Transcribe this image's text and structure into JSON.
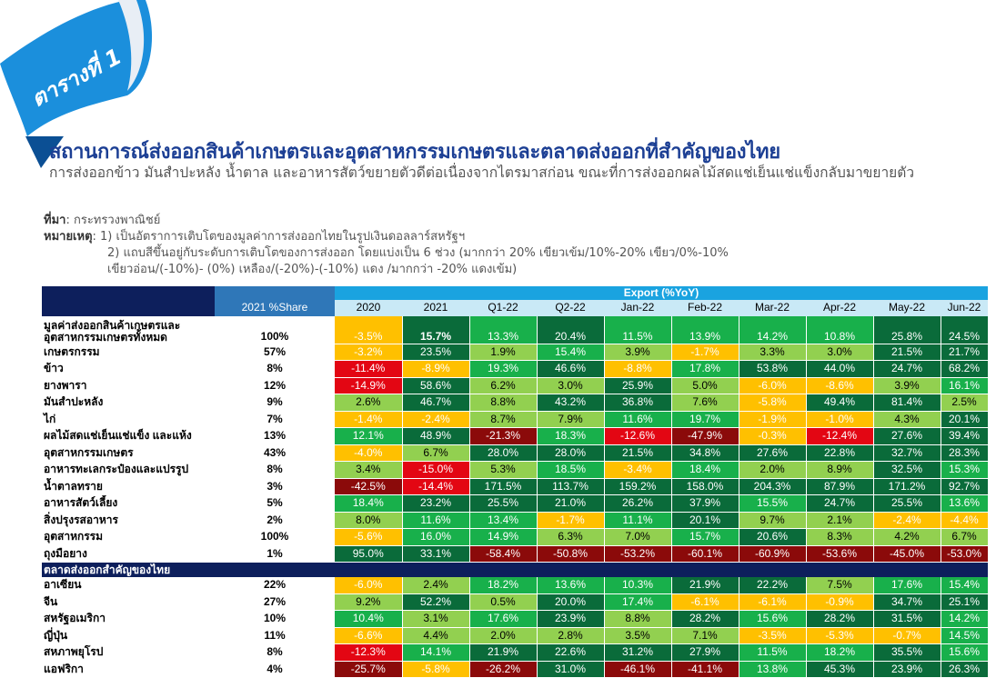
{
  "badge": "ตารางที่ 1",
  "title": "สถานการณ์ส่งออกสินค้าเกษตรและอุตสาหกรรมเกษตรและตลาดส่งออกที่สำคัญของไทย",
  "subtitle": "การส่งออกข้าว มันสำปะหลัง น้ำตาล และอาหารสัตว์ขยายตัวดีต่อเนื่องจากไตรมาสก่อน ขณะที่การส่งออกผลไม้สดแช่เย็นแช่แข็งกลับมาขยายตัว",
  "notes": {
    "source_label": "ที่มา",
    "source": ": กระทรวงพาณิชย์",
    "remark_label": "หมายเหตุ",
    "remark1": ": 1) เป็นอัตราการเติบโตของมูลค่าการส่งออกไทยในรูปเงินดอลลาร์สหรัฐฯ",
    "remark2": "2) แถบสีขึ้นอยู่กับระดับการเติบโตของการส่งออก โดยแบ่งเป็น 6 ช่วง (มากกว่า 20% เขียวเข้ม/10%-20% เขียว/0%-10%",
    "remark3": "เขียวอ่อน/(-10%)- (0%) เหลือง/(-20%)-(-10%) แดง /มากกว่า -20% แดงเข้ม)"
  },
  "colors": {
    "navy": "#0d1f5c",
    "blue": "#2f77b8",
    "cyan": "#1aa3e0",
    "light_blue": "#c9e9f6",
    "dark_green": "#0a6b3a",
    "green": "#18b04b",
    "light_green": "#92d050",
    "yellow": "#ffc000",
    "red": "#e30613",
    "dark_red": "#8b0a0a",
    "title": "#1c3f94"
  },
  "table": {
    "share_header": "2021 %Share",
    "export_header": "Export (%YoY)",
    "columns": [
      "2020",
      "2021",
      "Q1-22",
      "Q2-22",
      "Jan-22",
      "Feb-22",
      "Mar-22",
      "Apr-22",
      "May-22",
      "Jun-22"
    ],
    "market_section": "ตลาดส่งออกสำคัญของไทย",
    "rows": [
      {
        "label": "มูลค่าส่งออกสินค้าเกษตรและอุตสาหกรรมเกษตรทั้งหมด",
        "share": "100%",
        "bold_share": true,
        "two_line": true,
        "values": [
          "-3.5%",
          "15.7%",
          "13.3%",
          "20.4%",
          "11.5%",
          "13.9%",
          "14.2%",
          "10.8%",
          "25.8%",
          "24.5%"
        ],
        "colors": [
          "y",
          "dg",
          "g",
          "dg",
          "g",
          "g",
          "g",
          "g",
          "dg",
          "dg"
        ]
      },
      {
        "label": "เกษตรกรรม",
        "share": "57%",
        "bold_share": true,
        "values": [
          "-3.2%",
          "23.5%",
          "1.9%",
          "15.4%",
          "3.9%",
          "-1.7%",
          "3.3%",
          "3.0%",
          "21.5%",
          "21.7%"
        ],
        "colors": [
          "y",
          "dg",
          "lg",
          "g",
          "lg",
          "y",
          "lg",
          "lg",
          "dg",
          "dg"
        ]
      },
      {
        "label": "ข้าว",
        "share": "8%",
        "values": [
          "-11.4%",
          "-8.9%",
          "19.3%",
          "46.6%",
          "-8.8%",
          "17.8%",
          "53.8%",
          "44.0%",
          "24.7%",
          "68.2%"
        ],
        "colors": [
          "r",
          "y",
          "g",
          "dg",
          "y",
          "g",
          "dg",
          "dg",
          "dg",
          "dg"
        ]
      },
      {
        "label": "ยางพารา",
        "share": "12%",
        "values": [
          "-14.9%",
          "58.6%",
          "6.2%",
          "3.0%",
          "25.9%",
          "5.0%",
          "-6.0%",
          "-8.6%",
          "3.9%",
          "16.1%"
        ],
        "colors": [
          "r",
          "dg",
          "lg",
          "lg",
          "dg",
          "lg",
          "y",
          "y",
          "lg",
          "g"
        ]
      },
      {
        "label": "มันสำปะหลัง",
        "share": "9%",
        "values": [
          "2.6%",
          "46.7%",
          "8.8%",
          "43.2%",
          "36.8%",
          "7.6%",
          "-5.8%",
          "49.4%",
          "81.4%",
          "2.5%"
        ],
        "colors": [
          "lg",
          "dg",
          "lg",
          "dg",
          "dg",
          "lg",
          "y",
          "dg",
          "dg",
          "lg"
        ]
      },
      {
        "label": "ไก่",
        "share": "7%",
        "values": [
          "-1.4%",
          "-2.4%",
          "8.7%",
          "7.9%",
          "11.6%",
          "19.7%",
          "-1.9%",
          "-1.0%",
          "4.3%",
          "20.1%"
        ],
        "colors": [
          "y",
          "y",
          "lg",
          "lg",
          "g",
          "g",
          "y",
          "y",
          "lg",
          "dg"
        ]
      },
      {
        "label": "ผลไม้สดแช่เย็นแช่แข็ง และแห้ง",
        "share": "13%",
        "values": [
          "12.1%",
          "48.9%",
          "-21.3%",
          "18.3%",
          "-12.6%",
          "-47.9%",
          "-0.3%",
          "-12.4%",
          "27.6%",
          "39.4%"
        ],
        "colors": [
          "g",
          "dg",
          "dr",
          "g",
          "r",
          "dr",
          "y",
          "r",
          "dg",
          "dg"
        ]
      },
      {
        "label": "อุตสาหกรรมเกษตร",
        "share": "43%",
        "bold_share": true,
        "values": [
          "-4.0%",
          "6.7%",
          "28.0%",
          "28.0%",
          "21.5%",
          "34.8%",
          "27.6%",
          "22.8%",
          "32.7%",
          "28.3%"
        ],
        "colors": [
          "y",
          "lg",
          "dg",
          "dg",
          "dg",
          "dg",
          "dg",
          "dg",
          "dg",
          "dg"
        ]
      },
      {
        "label": "อาหารทะเลกระป๋องและแปรรูป",
        "share": "8%",
        "values": [
          "3.4%",
          "-15.0%",
          "5.3%",
          "18.5%",
          "-3.4%",
          "18.4%",
          "2.0%",
          "8.9%",
          "32.5%",
          "15.3%"
        ],
        "colors": [
          "lg",
          "r",
          "lg",
          "g",
          "y",
          "g",
          "lg",
          "lg",
          "dg",
          "g"
        ]
      },
      {
        "label": "น้ำตาลทราย",
        "share": "3%",
        "values": [
          "-42.5%",
          "-14.4%",
          "171.5%",
          "113.7%",
          "159.2%",
          "158.0%",
          "204.3%",
          "87.9%",
          "171.2%",
          "92.7%"
        ],
        "colors": [
          "dr",
          "r",
          "dg",
          "dg",
          "dg",
          "dg",
          "dg",
          "dg",
          "dg",
          "dg"
        ]
      },
      {
        "label": "อาหารสัตว์เลี้ยง",
        "share": "5%",
        "values": [
          "18.4%",
          "23.2%",
          "25.5%",
          "21.0%",
          "26.2%",
          "37.9%",
          "15.5%",
          "24.7%",
          "25.5%",
          "13.6%"
        ],
        "colors": [
          "g",
          "dg",
          "dg",
          "dg",
          "dg",
          "dg",
          "g",
          "dg",
          "dg",
          "g"
        ]
      },
      {
        "label": "สิ่งปรุงรสอาหาร",
        "share": "2%",
        "values": [
          "8.0%",
          "11.6%",
          "13.4%",
          "-1.7%",
          "11.1%",
          "20.1%",
          "9.7%",
          "2.1%",
          "-2.4%",
          "-4.4%"
        ],
        "colors": [
          "lg",
          "g",
          "g",
          "y",
          "g",
          "dg",
          "lg",
          "lg",
          "y",
          "y"
        ]
      },
      {
        "label": "อุตสาหกรรม",
        "share": "100%",
        "bold_share": true,
        "values": [
          "-5.6%",
          "16.0%",
          "14.9%",
          "6.3%",
          "7.0%",
          "15.7%",
          "20.6%",
          "8.3%",
          "4.2%",
          "6.7%"
        ],
        "colors": [
          "y",
          "g",
          "g",
          "lg",
          "lg",
          "g",
          "dg",
          "lg",
          "lg",
          "lg"
        ]
      },
      {
        "label": "ถุงมือยาง",
        "share": "1%",
        "values": [
          "95.0%",
          "33.1%",
          "-58.4%",
          "-50.8%",
          "-53.2%",
          "-60.1%",
          "-60.9%",
          "-53.6%",
          "-45.0%",
          "-53.0%"
        ],
        "colors": [
          "dg",
          "dg",
          "dr",
          "dr",
          "dr",
          "dr",
          "dr",
          "dr",
          "dr",
          "dr"
        ]
      }
    ],
    "market_rows": [
      {
        "label": "อาเซียน",
        "share": "22%",
        "values": [
          "-6.0%",
          "2.4%",
          "18.2%",
          "13.6%",
          "10.3%",
          "21.9%",
          "22.2%",
          "7.5%",
          "17.6%",
          "15.4%"
        ],
        "colors": [
          "y",
          "lg",
          "g",
          "g",
          "g",
          "dg",
          "dg",
          "lg",
          "g",
          "g"
        ]
      },
      {
        "label": "จีน",
        "share": "27%",
        "values": [
          "9.2%",
          "52.2%",
          "0.5%",
          "20.0%",
          "17.4%",
          "-6.1%",
          "-6.1%",
          "-0.9%",
          "34.7%",
          "25.1%"
        ],
        "colors": [
          "lg",
          "dg",
          "lg",
          "dg",
          "g",
          "y",
          "y",
          "y",
          "dg",
          "dg"
        ]
      },
      {
        "label": "สหรัฐอเมริกา",
        "share": "10%",
        "values": [
          "10.4%",
          "3.1%",
          "17.6%",
          "23.9%",
          "8.8%",
          "28.2%",
          "15.6%",
          "28.2%",
          "31.5%",
          "14.2%"
        ],
        "colors": [
          "g",
          "lg",
          "g",
          "dg",
          "lg",
          "dg",
          "g",
          "dg",
          "dg",
          "g"
        ]
      },
      {
        "label": "ญี่ปุ่น",
        "share": "11%",
        "values": [
          "-6.6%",
          "4.4%",
          "2.0%",
          "2.8%",
          "3.5%",
          "7.1%",
          "-3.5%",
          "-5.3%",
          "-0.7%",
          "14.5%"
        ],
        "colors": [
          "y",
          "lg",
          "lg",
          "lg",
          "lg",
          "lg",
          "y",
          "y",
          "y",
          "g"
        ]
      },
      {
        "label": "สหภาพยุโรป",
        "share": "8%",
        "values": [
          "-12.3%",
          "14.1%",
          "21.9%",
          "22.6%",
          "31.2%",
          "27.9%",
          "11.5%",
          "18.2%",
          "35.5%",
          "15.6%"
        ],
        "colors": [
          "r",
          "g",
          "dg",
          "dg",
          "dg",
          "dg",
          "g",
          "g",
          "dg",
          "g"
        ]
      },
      {
        "label": "แอฟริกา",
        "share": "4%",
        "values": [
          "-25.7%",
          "-5.8%",
          "-26.2%",
          "31.0%",
          "-46.1%",
          "-41.1%",
          "13.8%",
          "45.3%",
          "23.9%",
          "26.3%"
        ],
        "colors": [
          "dr",
          "y",
          "dr",
          "dg",
          "dr",
          "dr",
          "g",
          "dg",
          "dg",
          "dg"
        ]
      }
    ]
  }
}
